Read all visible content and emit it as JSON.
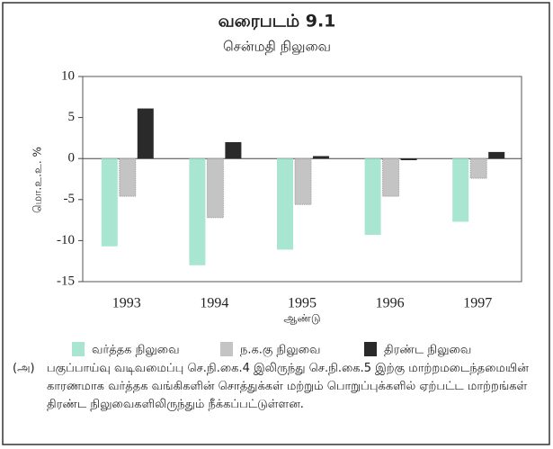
{
  "chart_data": {
    "type": "bar",
    "title": "வரைபடம் 9.1",
    "subtitle": "சென்மதி நிலுவை",
    "y_label": "மொ.உ.உ. %",
    "x_label": "ஆண்டு",
    "categories": [
      "1993",
      "1994",
      "1995",
      "1996",
      "1997"
    ],
    "series": [
      {
        "name": "வர்த்தக நிலுவை",
        "color": "#a8e6d2",
        "values": [
          -10.7,
          -13.0,
          -11.1,
          -9.3,
          -7.7
        ]
      },
      {
        "name": "ந.க.கு நிலுவை",
        "color": "#c4c4c4",
        "values": [
          -4.6,
          -7.2,
          -5.6,
          -4.6,
          -2.4
        ]
      },
      {
        "name": "திரண்ட நிலுவை",
        "color": "#2a2a2a",
        "values": [
          6.1,
          2.0,
          0.3,
          -0.2,
          0.8
        ]
      }
    ],
    "ylim": [
      -15,
      10
    ],
    "yticks": [
      -15,
      -10,
      -5,
      0,
      5,
      10
    ],
    "legend": "bottom",
    "footnote_marker": "(அ)",
    "footnote": "பகுப்பாய்வு வடிவமைப்பு செ.நி.கை.4 இலிருந்து செ.நி.கை.5 இற்கு மாற்றமடைந்தமையின் காரணமாக வர்த்தக வங்கிகளின் சொத்துக்கள் மற்றும் பொறுப்புக்களில் ஏற்பட்ட மாற்றங்கள் திரண்ட நிலுவைகளிலிருந்தும் நீக்கப்பட்டுள்ளன."
  }
}
